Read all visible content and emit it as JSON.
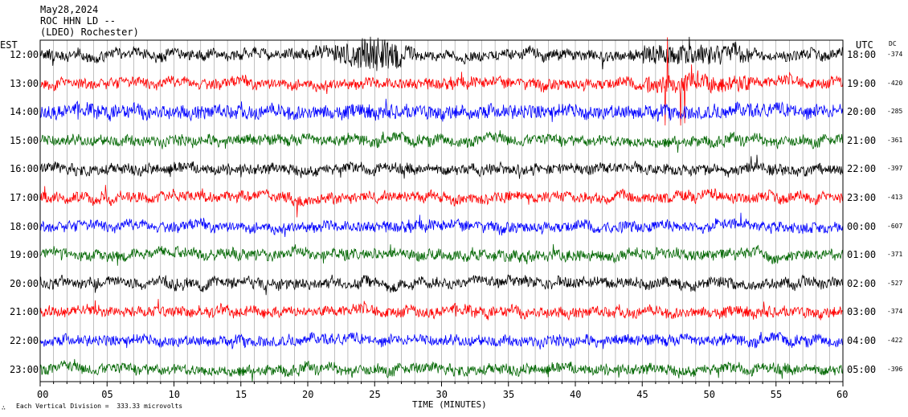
{
  "header": {
    "date": "May28,2024",
    "station": "ROC HHN LD --",
    "network": "(LDEO) Rochester)"
  },
  "footer": {
    "scale_note": "Each Vertical Division =  333.33 microvolts",
    "corner_mark": "∴"
  },
  "chart_data": {
    "type": "line",
    "xlabel": "TIME (MINUTES)",
    "left_timezone": "EST",
    "right_timezone": "UTC",
    "offset_header": "DC",
    "x_ticks": [
      "00",
      "05",
      "10",
      "15",
      "20",
      "25",
      "30",
      "35",
      "40",
      "45",
      "50",
      "55",
      "60"
    ],
    "xlim": [
      0,
      60
    ],
    "trace_colors": [
      "#000000",
      "#ff0000",
      "#0000ff",
      "#006600"
    ],
    "grid_color": "#808080",
    "series": [
      {
        "left": "12:00",
        "right": "18:00",
        "dc": "-374"
      },
      {
        "left": "13:00",
        "right": "19:00",
        "dc": "-420"
      },
      {
        "left": "14:00",
        "right": "20:00",
        "dc": "-285"
      },
      {
        "left": "15:00",
        "right": "21:00",
        "dc": "-361"
      },
      {
        "left": "16:00",
        "right": "22:00",
        "dc": "-397"
      },
      {
        "left": "17:00",
        "right": "23:00",
        "dc": "-413"
      },
      {
        "left": "18:00",
        "right": "00:00",
        "dc": "-607"
      },
      {
        "left": "19:00",
        "right": "01:00",
        "dc": "-371"
      },
      {
        "left": "20:00",
        "right": "02:00",
        "dc": "-527"
      },
      {
        "left": "21:00",
        "right": "03:00",
        "dc": "-374"
      },
      {
        "left": "22:00",
        "right": "04:00",
        "dc": "-422"
      },
      {
        "left": "23:00",
        "right": "05:00",
        "dc": "-396"
      }
    ]
  }
}
